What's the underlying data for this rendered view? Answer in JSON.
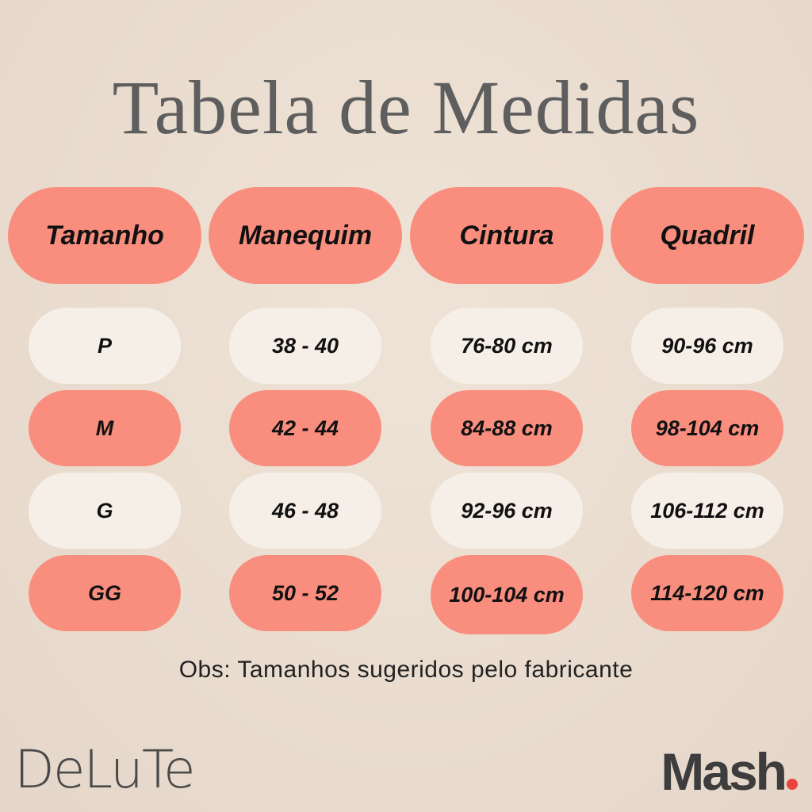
{
  "title": "Tabela de Medidas",
  "headers": [
    "Tamanho",
    "Manequim",
    "Cintura",
    "Quadril"
  ],
  "rows": [
    {
      "tamanho": "P",
      "manequim": "38 - 40",
      "cintura": "76-80 cm",
      "quadril": "90-96 cm",
      "style": "cream"
    },
    {
      "tamanho": "M",
      "manequim": "42 - 44",
      "cintura": "84-88 cm",
      "quadril": "98-104 cm",
      "style": "coral"
    },
    {
      "tamanho": "G",
      "manequim": "46 - 48",
      "cintura": "92-96 cm",
      "quadril": "106-112 cm",
      "style": "cream"
    },
    {
      "tamanho": "GG",
      "manequim": "50 - 52",
      "cintura": "100-104 cm",
      "quadril": "114-120 cm",
      "style": "coral"
    }
  ],
  "note": "Obs: Tamanhos sugeridos pelo fabricante",
  "logos": {
    "left": "DeLuTe",
    "right": "Mash"
  },
  "colors": {
    "coral": "#fa8e7e",
    "cream": "#f6efe8",
    "title": "#5e5e5e",
    "mash_dot": "#e8433c"
  }
}
